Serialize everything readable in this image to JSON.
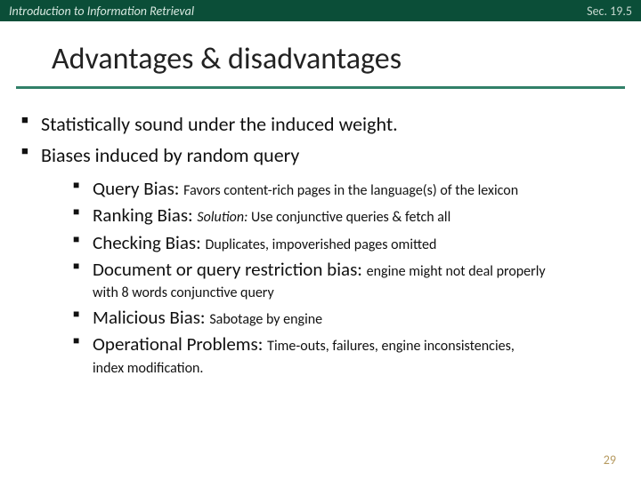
{
  "topbar": {
    "left": "Introduction to Information Retrieval",
    "right": "Sec. 19.5"
  },
  "title": "Advantages & disadvantages",
  "bullets": {
    "b1": "Statistically sound under the induced weight.",
    "b2": "Biases induced by random query",
    "sub": {
      "s1": {
        "head": "Query Bias: ",
        "tail": "Favors content-rich pages in the language(s) of the lexicon"
      },
      "s2": {
        "head": "Ranking Bias: ",
        "tail_i": "Solution: ",
        "tail": "Use conjunctive queries & fetch all"
      },
      "s3": {
        "head": "Checking Bias: ",
        "tail": "Duplicates, impoverished pages omitted"
      },
      "s4": {
        "head": "Document or query restriction bias: ",
        "tail": "engine might not deal properly"
      },
      "s4_cont": "with 8 words conjunctive query",
      "s5": {
        "head": "Malicious Bias: ",
        "tail": "Sabotage by engine"
      },
      "s6": {
        "head": "Operational Problems: ",
        "tail": "Time-outs, failures, engine inconsistencies,"
      },
      "s6_cont": "index modification."
    }
  },
  "pagenum": "29"
}
